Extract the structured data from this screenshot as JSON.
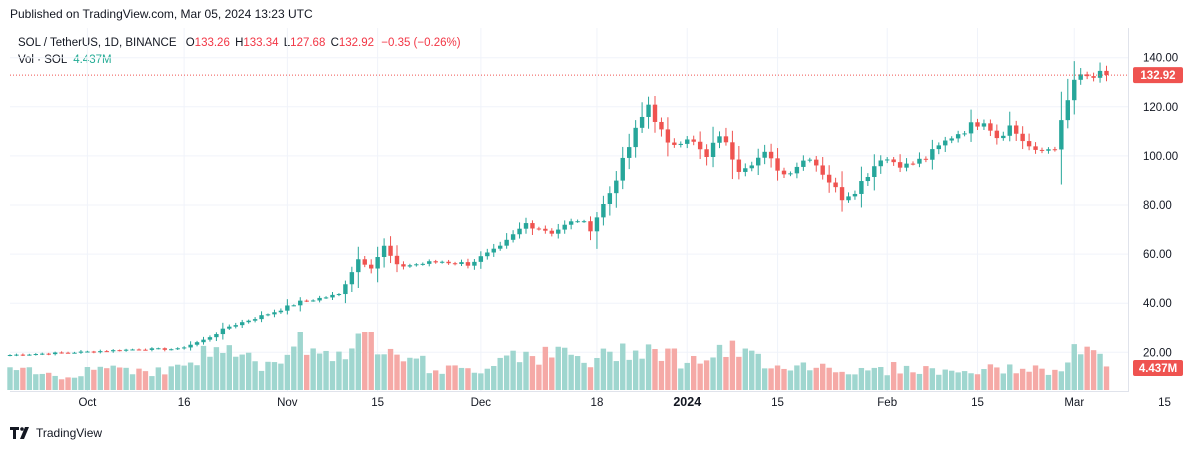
{
  "header": {
    "published": "Published on TradingView.com, Mar 05, 2024 13:23 UTC"
  },
  "legend": {
    "symbol": "SOL / TetherUS, 1D, BINANCE",
    "o_label": "O",
    "o_value": "133.26",
    "h_label": "H",
    "h_value": "133.34",
    "l_label": "L",
    "l_value": "127.68",
    "c_label": "C",
    "c_value": "132.92",
    "change": "−0.35 (−0.26%)",
    "vol_label": "Vol · SOL",
    "vol_value": "4.437M"
  },
  "price_axis": {
    "last_price_label": "132.92",
    "last_volume_label": "4.437M"
  },
  "footer": {
    "brand": "TradingView"
  },
  "colors": {
    "up": "#26a69a",
    "down": "#ef5350",
    "vol_up": "#9fd6cf",
    "vol_down": "#f5a9a6",
    "last_price_line": "#ef5350",
    "grid": "#f0f3fa"
  },
  "chart_data": {
    "type": "candlestick",
    "y_ticks": [
      20,
      40,
      60,
      80,
      100,
      120,
      140
    ],
    "y_tick_labels": [
      "20.00",
      "40.00",
      "60.00",
      "80.00",
      "100.00",
      "120.00",
      "140.00"
    ],
    "ylim": [
      -6,
      148
    ],
    "x_ticks": [
      "15",
      "Oct",
      "16",
      "Nov",
      "15",
      "Dec",
      "18",
      "2024",
      "15",
      "Feb",
      "15",
      "Mar",
      "15"
    ],
    "x_tick_days": [
      -4,
      12,
      27,
      43,
      57,
      73,
      91,
      105,
      119,
      136,
      150,
      165,
      179
    ],
    "x_tick_bold": [
      "2024"
    ],
    "last_close": 132.92,
    "last_volume": "4.437M",
    "keypoints": [
      {
        "day": 0,
        "price": 18.9
      },
      {
        "day": 12,
        "price": 20.2
      },
      {
        "day": 20,
        "price": 21.3
      },
      {
        "day": 26,
        "price": 21.3
      },
      {
        "day": 30,
        "price": 25.0
      },
      {
        "day": 34,
        "price": 30.5
      },
      {
        "day": 41,
        "price": 36.5
      },
      {
        "day": 45,
        "price": 40.5
      },
      {
        "day": 51,
        "price": 43.5
      },
      {
        "day": 54,
        "price": 58.0
      },
      {
        "day": 56,
        "price": 55.0
      },
      {
        "day": 58,
        "price": 63.0
      },
      {
        "day": 60,
        "price": 55.0
      },
      {
        "day": 67,
        "price": 57.0
      },
      {
        "day": 71,
        "price": 56.0
      },
      {
        "day": 76,
        "price": 62.5
      },
      {
        "day": 80,
        "price": 72.5
      },
      {
        "day": 84,
        "price": 69.0
      },
      {
        "day": 88,
        "price": 74.0
      },
      {
        "day": 90,
        "price": 70.5
      },
      {
        "day": 93,
        "price": 85.0
      },
      {
        "day": 97,
        "price": 110.0
      },
      {
        "day": 99,
        "price": 121.0
      },
      {
        "day": 102,
        "price": 104.0
      },
      {
        "day": 105,
        "price": 108.0
      },
      {
        "day": 108,
        "price": 99.0
      },
      {
        "day": 110,
        "price": 109.0
      },
      {
        "day": 113,
        "price": 95.0
      },
      {
        "day": 117,
        "price": 100.5
      },
      {
        "day": 120,
        "price": 92.5
      },
      {
        "day": 124,
        "price": 100.0
      },
      {
        "day": 129,
        "price": 83.0
      },
      {
        "day": 131,
        "price": 86.0
      },
      {
        "day": 135,
        "price": 99.5
      },
      {
        "day": 139,
        "price": 96.0
      },
      {
        "day": 142,
        "price": 99.0
      },
      {
        "day": 146,
        "price": 108.0
      },
      {
        "day": 151,
        "price": 115.0
      },
      {
        "day": 153,
        "price": 108.0
      },
      {
        "day": 155,
        "price": 112.0
      },
      {
        "day": 159,
        "price": 101.0
      },
      {
        "day": 162,
        "price": 104.0
      },
      {
        "day": 165,
        "price": 131.0
      },
      {
        "day": 168,
        "price": 132.0
      },
      {
        "day": 170,
        "price": 132.92
      }
    ],
    "volume_keypoints": [
      {
        "day": 0,
        "volume": 0.45
      },
      {
        "day": 8,
        "volume": 0.3
      },
      {
        "day": 14,
        "volume": 0.55
      },
      {
        "day": 24,
        "volume": 0.4
      },
      {
        "day": 33,
        "volume": 0.95
      },
      {
        "day": 40,
        "volume": 0.5
      },
      {
        "day": 45,
        "volume": 1.2
      },
      {
        "day": 48,
        "volume": 0.8
      },
      {
        "day": 52,
        "volume": 0.9
      },
      {
        "day": 56,
        "volume": 1.15
      },
      {
        "day": 60,
        "volume": 1.0
      },
      {
        "day": 65,
        "volume": 0.5
      },
      {
        "day": 72,
        "volume": 0.4
      },
      {
        "day": 78,
        "volume": 0.9
      },
      {
        "day": 82,
        "volume": 0.75
      },
      {
        "day": 86,
        "volume": 0.8
      },
      {
        "day": 90,
        "volume": 0.6
      },
      {
        "day": 94,
        "volume": 0.85
      },
      {
        "day": 97,
        "volume": 1.0
      },
      {
        "day": 101,
        "volume": 0.9
      },
      {
        "day": 105,
        "volume": 0.6
      },
      {
        "day": 108,
        "volume": 0.75
      },
      {
        "day": 112,
        "volume": 0.85
      },
      {
        "day": 116,
        "volume": 0.7
      },
      {
        "day": 120,
        "volume": 0.55
      },
      {
        "day": 126,
        "volume": 0.55
      },
      {
        "day": 132,
        "volume": 0.4
      },
      {
        "day": 138,
        "volume": 0.5
      },
      {
        "day": 146,
        "volume": 0.4
      },
      {
        "day": 152,
        "volume": 0.45
      },
      {
        "day": 158,
        "volume": 0.5
      },
      {
        "day": 162,
        "volume": 0.35
      },
      {
        "day": 166,
        "volume": 1.0
      },
      {
        "day": 170,
        "volume": 0.55
      }
    ]
  }
}
